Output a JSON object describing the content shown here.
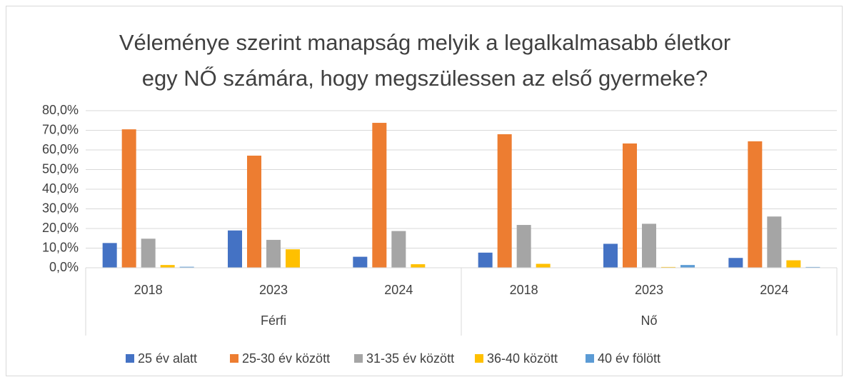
{
  "chart_data": {
    "type": "bar",
    "title": [
      "Véleménye szerint manapság melyik a legalkalmasabb életkor",
      "egy NŐ számára, hogy megszülessen az első gyermeke?"
    ],
    "groups": [
      {
        "name": "Férfi",
        "categories": [
          "2018",
          "2023",
          "2024"
        ]
      },
      {
        "name": "Nő",
        "categories": [
          "2018",
          "2023",
          "2024"
        ]
      }
    ],
    "series": [
      {
        "name": "25 év alatt",
        "color": "#4472c4",
        "values": [
          12.6,
          19.0,
          5.6,
          7.7,
          12.2,
          5.0
        ]
      },
      {
        "name": "25-30 év között",
        "color": "#ed7d31",
        "values": [
          70.5,
          57.1,
          73.8,
          68.0,
          63.3,
          64.4
        ]
      },
      {
        "name": "31-35 év között",
        "color": "#a5a5a5",
        "values": [
          14.8,
          14.2,
          18.7,
          21.8,
          22.4,
          26.1
        ]
      },
      {
        "name": "36-40 között",
        "color": "#ffc000",
        "values": [
          1.4,
          9.4,
          1.8,
          2.0,
          0.4,
          3.8
        ]
      },
      {
        "name": "40 év fölött",
        "color": "#5b9bd5",
        "values": [
          0.5,
          0,
          0,
          0,
          1.4,
          0.4
        ]
      }
    ],
    "ylim": [
      0,
      80
    ],
    "yticks": [
      {
        "value": 0,
        "label": "0,0%"
      },
      {
        "value": 10,
        "label": "10,0%"
      },
      {
        "value": 20,
        "label": "20,0%"
      },
      {
        "value": 30,
        "label": "30,0%"
      },
      {
        "value": 40,
        "label": "40,0%"
      },
      {
        "value": 50,
        "label": "50,0%"
      },
      {
        "value": 60,
        "label": "60,0%"
      },
      {
        "value": 70,
        "label": "70,0%"
      },
      {
        "value": 80,
        "label": "80,0%"
      }
    ],
    "grid": true,
    "legend": "bottom"
  }
}
